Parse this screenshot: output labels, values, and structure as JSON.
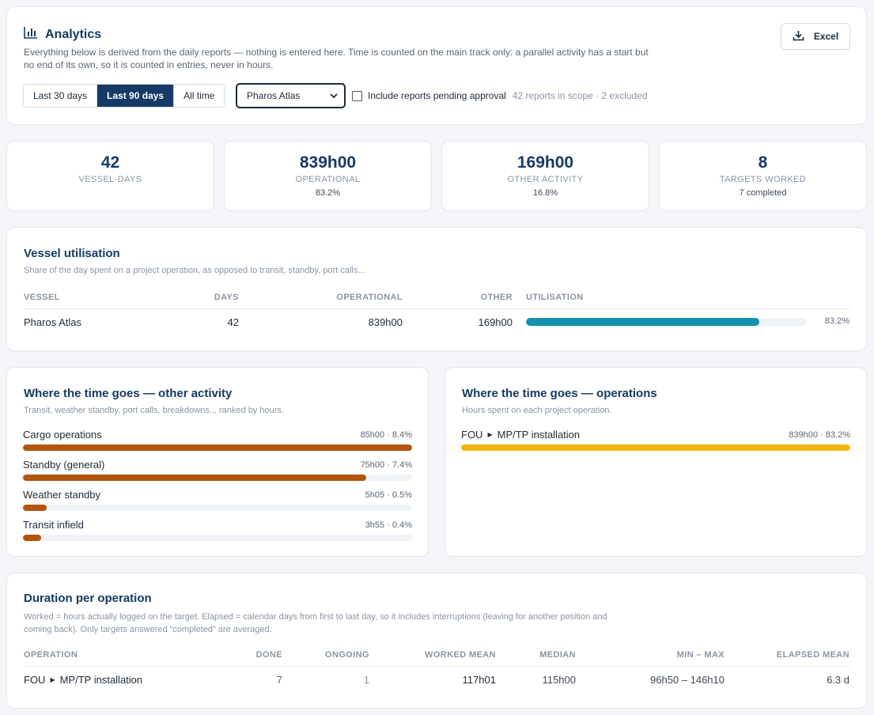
{
  "header": {
    "title": "Analytics",
    "intro": "Everything below is derived from the daily reports — nothing is entered here. Time is counted on the main track only: a parallel activity has a start but no end of its own, so it is counted in entries, never in hours.",
    "export_label": "Excel",
    "ranges": [
      "Last 30 days",
      "Last 90 days",
      "All time"
    ],
    "active_range": "Last 90 days",
    "vessel_selected": "Pharos Atlas",
    "pending_label": "Include reports pending approval",
    "pending_checked": false,
    "scope_text": "42 reports in scope · 2 excluded"
  },
  "kpis": [
    {
      "value": "42",
      "label": "VESSEL-DAYS",
      "sub": ""
    },
    {
      "value": "839h00",
      "label": "OPERATIONAL",
      "sub": "83.2%"
    },
    {
      "value": "169h00",
      "label": "OTHER ACTIVITY",
      "sub": "16.8%"
    },
    {
      "value": "8",
      "label": "TARGETS WORKED",
      "sub": "7 completed"
    }
  ],
  "utilisation": {
    "title": "Vessel utilisation",
    "subtitle": "Share of the day spent on a project operation, as opposed to transit, standby, port calls...",
    "columns": {
      "vessel": "VESSEL",
      "days": "DAYS",
      "operational": "OPERATIONAL",
      "other": "OTHER",
      "utilisation": "UTILISATION"
    },
    "rows": [
      {
        "vessel": "Pharos Atlas",
        "days": "42",
        "operational": "839h00",
        "other": "169h00",
        "utilisation_pct": 83.2,
        "utilisation_label": "83.2%"
      }
    ]
  },
  "other_activity": {
    "title": "Where the time goes — other activity",
    "subtitle": "Transit, weather standby, port calls, breakdowns... ranked by hours.",
    "items": [
      {
        "name": "Cargo operations",
        "meta": "85h00 · 8.4%",
        "fraction": 1.0
      },
      {
        "name": "Standby (general)",
        "meta": "75h00 · 7.4%",
        "fraction": 0.882
      },
      {
        "name": "Weather standby",
        "meta": "5h05 · 0.5%",
        "fraction": 0.06
      },
      {
        "name": "Transit infield",
        "meta": "3h55 · 0.4%",
        "fraction": 0.046
      }
    ]
  },
  "operations": {
    "title": "Where the time goes — operations",
    "subtitle": "Hours spent on each project operation.",
    "items": [
      {
        "group": "FOU",
        "name": "MP/TP installation",
        "meta": "839h00 · 83.2%",
        "fraction": 1.0
      }
    ]
  },
  "duration": {
    "title": "Duration per operation",
    "subtitle": "Worked = hours actually logged on the target. Elapsed = calendar days from first to last day, so it includes interruptions (leaving for another position and coming back). Only targets answered “completed” are averaged.",
    "columns": {
      "operation": "OPERATION",
      "done": "DONE",
      "ongoing": "ONGOING",
      "worked_mean": "WORKED MEAN",
      "median": "MEDIAN",
      "min_max": "MIN – MAX",
      "elapsed_mean": "ELAPSED MEAN"
    },
    "rows": [
      {
        "group": "FOU",
        "name": "MP/TP installation",
        "done": "7",
        "ongoing": "1",
        "worked_mean": "117h01",
        "median": "115h00",
        "min_max": "96h50 – 146h10",
        "elapsed_mean": "6.3 d"
      }
    ]
  },
  "colors": {
    "navy": "#153a66",
    "teal": "#1392b0",
    "rust": "#b3540f",
    "gold": "#f0b50f"
  },
  "icons": {
    "analytics": "bar-chart-icon",
    "export": "download-icon",
    "select": "chevron-down-icon",
    "operation_separator": "triangle-right-icon"
  }
}
